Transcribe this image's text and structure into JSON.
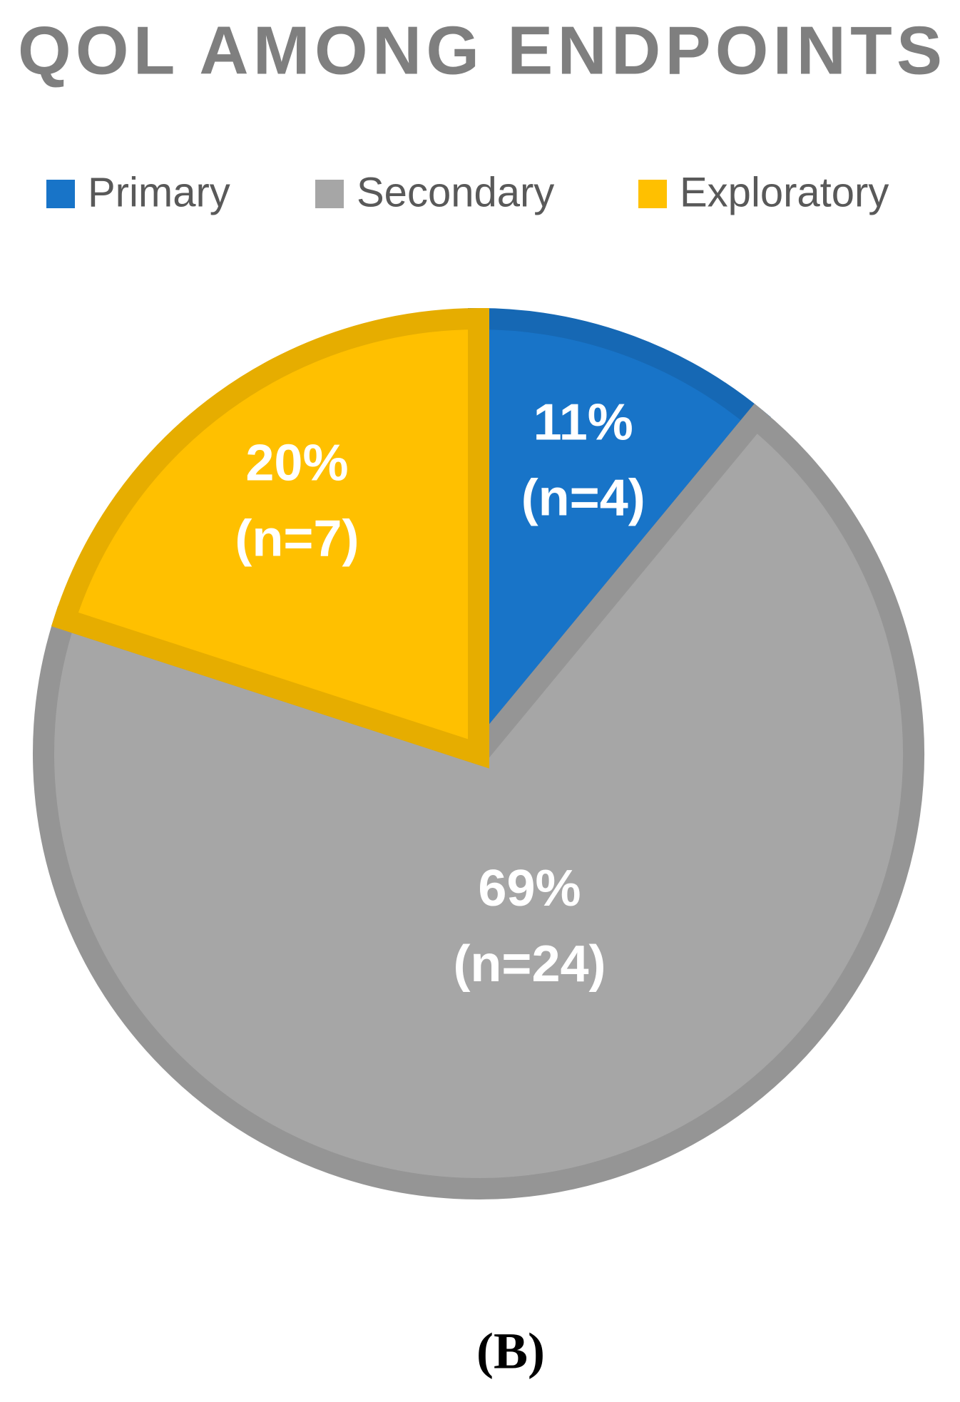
{
  "chart_data": {
    "type": "pie",
    "title": "QOL AMONG ENDPOINTS",
    "categories": [
      "Primary",
      "Secondary",
      "Exploratory"
    ],
    "values": [
      11,
      69,
      20
    ],
    "value_labels": [
      "11%",
      "69%",
      "20%"
    ],
    "counts": [
      4,
      24,
      7
    ],
    "count_labels": [
      "(n=4)",
      "(n=24)",
      "(n=7)"
    ],
    "colors": [
      "#1874c8",
      "#a6a6a6",
      "#ffc000"
    ],
    "legend": "top"
  },
  "caption": "(B)"
}
